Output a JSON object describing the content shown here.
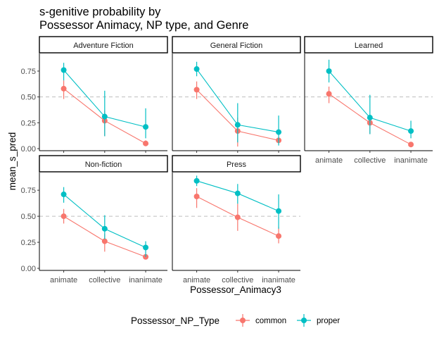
{
  "chart_data": {
    "type": "line",
    "title_lines": [
      "s-genitive probability by",
      "Possessor Animacy, NP type, and Genre"
    ],
    "xlabel": "Possessor_Animacy3",
    "ylabel": "mean_s_pred",
    "categories": [
      "animate",
      "collective",
      "inanimate"
    ],
    "ylim": [
      -0.02,
      0.92
    ],
    "yticks": [
      0.0,
      0.25,
      0.5,
      0.75
    ],
    "ytick_labels": [
      "0.00",
      "0.25",
      "0.50",
      "0.75"
    ],
    "reference_line": 0.5,
    "legend": {
      "title": "Possessor_NP_Type",
      "position": "bottom",
      "entries": [
        {
          "label": "common",
          "color": "#F8766D"
        },
        {
          "label": "proper",
          "color": "#00BFC4"
        }
      ]
    },
    "panels": [
      {
        "label": "Adventure Fiction",
        "series": [
          {
            "name": "common",
            "color": "#F8766D",
            "values": [
              0.58,
              0.27,
              0.05
            ],
            "lower": [
              0.48,
              0.12,
              0.03
            ],
            "upper": [
              0.66,
              0.37,
              0.08
            ]
          },
          {
            "name": "proper",
            "color": "#00BFC4",
            "values": [
              0.76,
              0.31,
              0.21
            ],
            "lower": [
              0.66,
              0.12,
              0.1
            ],
            "upper": [
              0.83,
              0.56,
              0.39
            ]
          }
        ]
      },
      {
        "label": "General Fiction",
        "series": [
          {
            "name": "common",
            "color": "#F8766D",
            "values": [
              0.57,
              0.17,
              0.08
            ],
            "lower": [
              0.48,
              0.02,
              0.05
            ],
            "upper": [
              0.65,
              0.3,
              0.11
            ]
          },
          {
            "name": "proper",
            "color": "#00BFC4",
            "values": [
              0.77,
              0.23,
              0.16
            ],
            "lower": [
              0.7,
              0.06,
              0.03
            ],
            "upper": [
              0.84,
              0.44,
              0.32
            ]
          }
        ]
      },
      {
        "label": "Learned",
        "series": [
          {
            "name": "common",
            "color": "#F8766D",
            "values": [
              0.53,
              0.25,
              0.04
            ],
            "lower": [
              0.44,
              0.14,
              0.02
            ],
            "upper": [
              0.6,
              0.31,
              0.06
            ]
          },
          {
            "name": "proper",
            "color": "#00BFC4",
            "values": [
              0.75,
              0.3,
              0.17
            ],
            "lower": [
              0.64,
              0.14,
              0.1
            ],
            "upper": [
              0.86,
              0.52,
              0.27
            ]
          }
        ]
      },
      {
        "label": "Non-fiction",
        "series": [
          {
            "name": "common",
            "color": "#F8766D",
            "values": [
              0.5,
              0.26,
              0.11
            ],
            "lower": [
              0.43,
              0.16,
              0.09
            ],
            "upper": [
              0.57,
              0.33,
              0.13
            ]
          },
          {
            "name": "proper",
            "color": "#00BFC4",
            "values": [
              0.71,
              0.38,
              0.2
            ],
            "lower": [
              0.63,
              0.28,
              0.11
            ],
            "upper": [
              0.78,
              0.51,
              0.26
            ]
          }
        ]
      },
      {
        "label": "Press",
        "series": [
          {
            "name": "common",
            "color": "#F8766D",
            "values": [
              0.69,
              0.49,
              0.31
            ],
            "lower": [
              0.58,
              0.36,
              0.24
            ],
            "upper": [
              0.77,
              0.62,
              0.4
            ]
          },
          {
            "name": "proper",
            "color": "#00BFC4",
            "values": [
              0.84,
              0.72,
              0.55
            ],
            "lower": [
              0.79,
              0.62,
              0.38
            ],
            "upper": [
              0.89,
              0.81,
              0.71
            ]
          }
        ]
      }
    ]
  }
}
